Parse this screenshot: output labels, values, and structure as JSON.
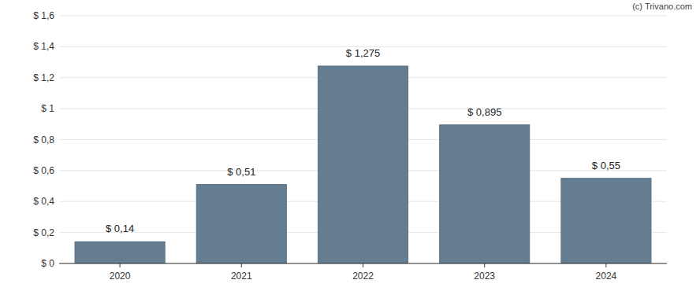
{
  "chart_data": {
    "type": "bar",
    "categories": [
      "2020",
      "2021",
      "2022",
      "2023",
      "2024"
    ],
    "values": [
      0.14,
      0.51,
      1.275,
      0.895,
      0.55
    ],
    "value_labels": [
      "$ 0,14",
      "$ 0,51",
      "$ 1,275",
      "$ 0,895",
      "$ 0,55"
    ],
    "data_labels": true,
    "color": "#647d91",
    "ylim": [
      0,
      1.6
    ],
    "yticks": [
      {
        "value": 0,
        "label": "$ 0"
      },
      {
        "value": 0.2,
        "label": "$ 0,2"
      },
      {
        "value": 0.4,
        "label": "$ 0,4"
      },
      {
        "value": 0.6,
        "label": "$ 0,6"
      },
      {
        "value": 0.8,
        "label": "$ 0,8"
      },
      {
        "value": 1,
        "label": "$ 1"
      },
      {
        "value": 1.2,
        "label": "$ 1,2"
      },
      {
        "value": 1.4,
        "label": "$ 1,4"
      },
      {
        "value": 1.6,
        "label": "$ 1,6"
      }
    ],
    "grid": true,
    "annotations": [
      "(c) Trivano.com"
    ]
  }
}
